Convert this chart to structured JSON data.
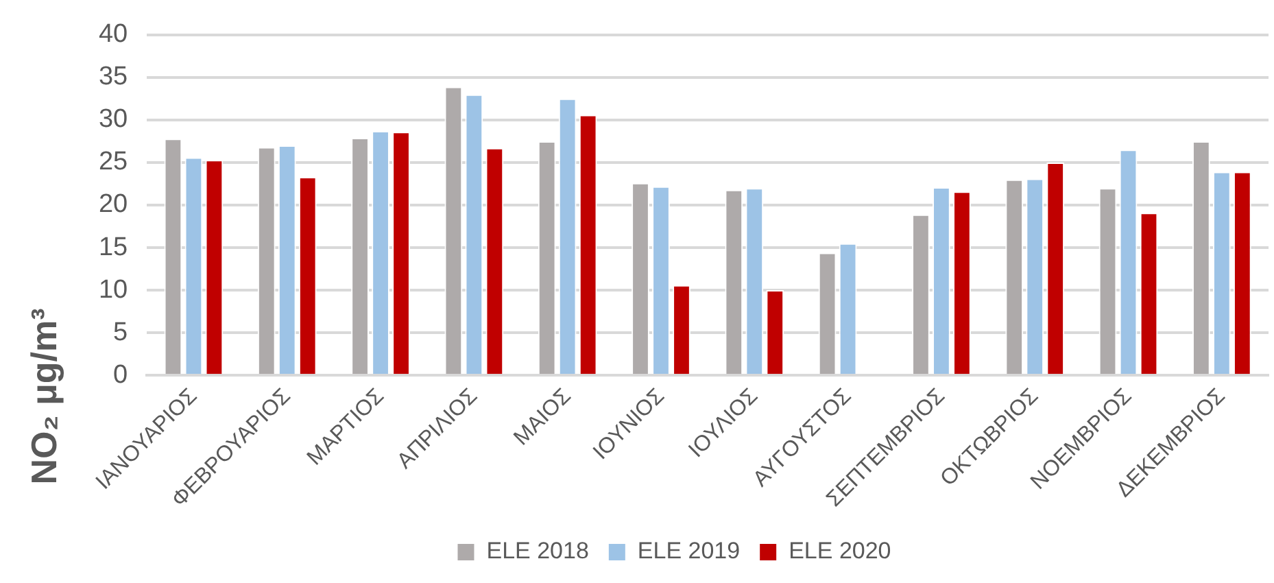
{
  "chart_data": {
    "type": "bar",
    "ylabel": "NO₂ μg/m³",
    "categories": [
      "ΙΑΝΟΥΑΡΙΟΣ",
      "ΦΕΒΡΟΥΑΡΙΟΣ",
      "ΜΑΡΤΙΟΣ",
      "ΑΠΡΙΛΙΟΣ",
      "ΜΑΙΟΣ",
      "ΙΟΥΝΙΟΣ",
      "ΙΟΥΛΙΟΣ",
      "ΑΥΓΟΥΣΤΟΣ",
      "ΣΕΠΤΕΜΒΡΙΟΣ",
      "ΟΚΤΩΒΡΙΟΣ",
      "ΝΟΕΜΒΡΙΟΣ",
      "ΔΕΚΕΜΒΡΙΟΣ"
    ],
    "series": [
      {
        "name": "ELE 2018",
        "color": "#aeaaaa",
        "values": [
          27.8,
          26.8,
          27.9,
          33.9,
          27.5,
          22.6,
          21.8,
          14.4,
          18.9,
          23.0,
          22.0,
          27.5
        ]
      },
      {
        "name": "ELE 2019",
        "color": "#9dc3e6",
        "values": [
          25.6,
          27.0,
          28.7,
          33.0,
          32.5,
          22.2,
          22.0,
          15.5,
          22.1,
          23.1,
          26.5,
          23.9
        ]
      },
      {
        "name": "ELE 2020",
        "color": "#c00000",
        "values": [
          25.3,
          23.3,
          28.6,
          26.7,
          30.6,
          10.6,
          10.0,
          null,
          21.6,
          25.0,
          19.1,
          23.9
        ]
      }
    ],
    "ylim": [
      0,
      40
    ],
    "yticks": [
      0,
      5,
      10,
      15,
      20,
      25,
      30,
      35,
      40
    ],
    "grid": "y",
    "legend": "bottom"
  }
}
